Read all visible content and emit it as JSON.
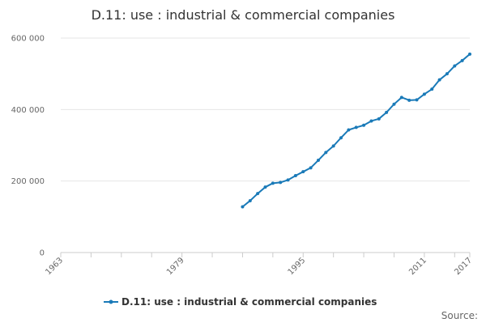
{
  "chart_data": {
    "type": "line",
    "title": "D.11: use : industrial & commercial companies",
    "xlabel": "",
    "ylabel": "",
    "xlim": [
      1963,
      2017
    ],
    "ylim": [
      0,
      600000
    ],
    "yticks": [
      0,
      200000,
      400000,
      600000
    ],
    "ytick_labels": [
      "0",
      "200 000",
      "400 000",
      "600 000"
    ],
    "xticks": [
      1963,
      1979,
      1995,
      2011,
      2017
    ],
    "xtick_labels": [
      "1963",
      "1979",
      "1995",
      "2011",
      "2017"
    ],
    "grid": true,
    "legend_position": "bottom",
    "series": [
      {
        "name": "D.11: use : industrial & commercial companies",
        "color": "#1a7ab8",
        "x": [
          1987,
          1988,
          1989,
          1990,
          1991,
          1992,
          1993,
          1994,
          1995,
          1996,
          1997,
          1998,
          1999,
          2000,
          2001,
          2002,
          2003,
          2004,
          2005,
          2006,
          2007,
          2008,
          2009,
          2010,
          2011,
          2012,
          2013,
          2014,
          2015,
          2016,
          2017
        ],
        "y": [
          128000,
          145000,
          165000,
          183000,
          194000,
          196000,
          203000,
          215000,
          226000,
          237000,
          258000,
          280000,
          298000,
          321000,
          343000,
          350000,
          356000,
          368000,
          374000,
          392000,
          415000,
          434000,
          426000,
          427000,
          443000,
          457000,
          483000,
          500000,
          522000,
          537000,
          555000
        ]
      }
    ]
  },
  "legend": {
    "label": "D.11: use : industrial & commercial companies"
  },
  "footer": {
    "source_label": "Source:"
  }
}
